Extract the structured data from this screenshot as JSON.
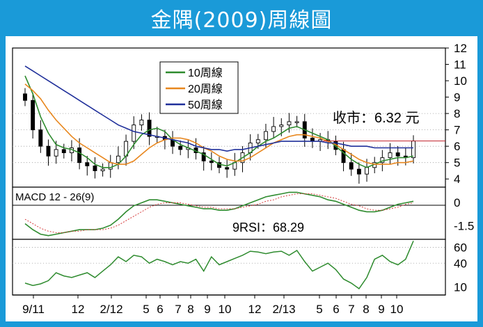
{
  "title": "金隅(2009)周線圖",
  "chart_data": [
    {
      "type": "candlestick",
      "panel": "price",
      "y_ticks": [
        "4",
        "5",
        "6",
        "7",
        "8",
        "9",
        "10",
        "11",
        "12"
      ],
      "ylim": [
        3.5,
        12
      ],
      "grid": true,
      "legend_position": "top-center",
      "legend": [
        {
          "name": "10周線",
          "color": "#2e8b2e"
        },
        {
          "name": "20周線",
          "color": "#e8871e"
        },
        {
          "name": "50周線",
          "color": "#1f2f9a"
        }
      ],
      "annotation": "收市：6.32 元",
      "close_line": 6.32,
      "series": [
        {
          "name": "10周線",
          "values": [
            10.3,
            9.2,
            7.8,
            6.8,
            6.1,
            5.9,
            5.8,
            5.6,
            5.3,
            4.9,
            4.7,
            4.7,
            4.9,
            5.4,
            6.1,
            6.7,
            7.0,
            7.1,
            6.9,
            6.4,
            6.1,
            5.9,
            5.7,
            5.5,
            5.2,
            4.9,
            4.8,
            5.0,
            5.3,
            5.6,
            6.0,
            6.3,
            6.5,
            6.8,
            7.1,
            7.2,
            7.0,
            6.8,
            6.6,
            6.4,
            6.0,
            5.6,
            5.2,
            4.9,
            4.7,
            4.9,
            5.1,
            5.2,
            5.3,
            5.3,
            5.4
          ]
        },
        {
          "name": "20周線",
          "values": [
            9.8,
            9.4,
            8.9,
            8.2,
            7.6,
            7.1,
            6.6,
            6.2,
            5.9,
            5.6,
            5.3,
            5.0,
            4.9,
            4.9,
            5.1,
            5.5,
            5.9,
            6.2,
            6.4,
            6.5,
            6.5,
            6.4,
            6.2,
            5.9,
            5.7,
            5.4,
            5.2,
            5.1,
            5.1,
            5.3,
            5.6,
            5.9,
            6.2,
            6.4,
            6.6,
            6.7,
            6.7,
            6.6,
            6.5,
            6.3,
            6.1,
            5.8,
            5.5,
            5.2,
            5.0,
            4.9,
            4.9,
            4.9,
            5.0,
            5.0,
            5.1
          ]
        },
        {
          "name": "50周線",
          "values": [
            10.9,
            10.6,
            10.3,
            10.0,
            9.7,
            9.4,
            9.1,
            8.8,
            8.5,
            8.2,
            7.9,
            7.6,
            7.3,
            7.1,
            6.9,
            6.8,
            6.7,
            6.6,
            6.5,
            6.4,
            6.3,
            6.2,
            6.0,
            5.9,
            5.8,
            5.8,
            5.7,
            5.8,
            5.8,
            5.9,
            6.0,
            6.1,
            6.2,
            6.3,
            6.3,
            6.3,
            6.3,
            6.3,
            6.3,
            6.2,
            6.2,
            6.1,
            6.0,
            6.0,
            6.0,
            5.9,
            5.9,
            5.9,
            5.9,
            5.9,
            5.9
          ]
        },
        {
          "name": "close",
          "values": [
            8.8,
            7.0,
            6.0,
            5.4,
            5.8,
            5.6,
            5.9,
            5.0,
            4.8,
            4.5,
            4.6,
            5.0,
            5.4,
            6.3,
            7.3,
            7.6,
            6.6,
            6.6,
            6.4,
            6.0,
            5.8,
            5.9,
            5.6,
            5.1,
            5.0,
            4.7,
            4.6,
            5.0,
            5.6,
            6.2,
            6.4,
            6.9,
            7.2,
            7.3,
            7.5,
            7.5,
            6.5,
            6.3,
            6.4,
            6.3,
            5.8,
            5.0,
            4.6,
            4.3,
            4.7,
            5.0,
            5.3,
            5.6,
            5.4,
            5.3,
            6.32
          ]
        }
      ]
    },
    {
      "type": "line",
      "panel": "macd",
      "label": "MACD 12 - 26(9)",
      "y_ticks": [
        "0",
        "-1.5"
      ],
      "series": [
        {
          "name": "macd",
          "values": [
            -1.5,
            -1.9,
            -2.2,
            -2.3,
            -2.2,
            -2.1,
            -2.0,
            -1.9,
            -1.9,
            -1.9,
            -1.8,
            -1.6,
            -1.2,
            -0.7,
            -0.3,
            -0.1,
            0.1,
            0.1,
            0.0,
            -0.1,
            -0.2,
            -0.3,
            -0.4,
            -0.5,
            -0.5,
            -0.6,
            -0.6,
            -0.5,
            -0.3,
            -0.1,
            0.1,
            0.3,
            0.4,
            0.5,
            0.6,
            0.6,
            0.5,
            0.4,
            0.3,
            0.1,
            0.0,
            -0.2,
            -0.4,
            -0.6,
            -0.7,
            -0.7,
            -0.6,
            -0.4,
            -0.2,
            -0.1,
            0.0
          ]
        },
        {
          "name": "signal",
          "values": [
            -1.2,
            -1.5,
            -1.8,
            -2.0,
            -2.1,
            -2.1,
            -2.0,
            -2.0,
            -1.9,
            -1.9,
            -1.9,
            -1.8,
            -1.6,
            -1.3,
            -1.0,
            -0.7,
            -0.4,
            -0.2,
            -0.1,
            -0.1,
            -0.1,
            -0.2,
            -0.3,
            -0.4,
            -0.4,
            -0.5,
            -0.5,
            -0.5,
            -0.4,
            -0.3,
            -0.2,
            0.0,
            0.1,
            0.3,
            0.4,
            0.5,
            0.5,
            0.5,
            0.4,
            0.3,
            0.2,
            0.0,
            -0.2,
            -0.3,
            -0.5,
            -0.6,
            -0.6,
            -0.5,
            -0.4,
            -0.2,
            -0.1
          ]
        }
      ]
    },
    {
      "type": "line",
      "panel": "rsi",
      "label": "9RSI：68.29",
      "y_ticks": [
        "60",
        "40",
        "10"
      ],
      "ylim": [
        0,
        70
      ],
      "series": [
        {
          "name": "9RSI",
          "values": [
            15,
            12,
            14,
            18,
            28,
            24,
            22,
            25,
            28,
            22,
            30,
            38,
            48,
            42,
            50,
            48,
            40,
            45,
            42,
            38,
            42,
            40,
            45,
            30,
            48,
            38,
            42,
            46,
            50,
            55,
            54,
            52,
            54,
            55,
            50,
            56,
            42,
            30,
            35,
            40,
            32,
            20,
            15,
            8,
            22,
            45,
            50,
            42,
            38,
            45,
            68
          ]
        }
      ]
    }
  ],
  "x_labels": [
    "9/11",
    "12",
    "2/12",
    "5",
    "6",
    "7",
    "8",
    "9",
    "10",
    "12",
    "2/13",
    "5",
    "6",
    "7",
    "8",
    "9",
    "10"
  ]
}
